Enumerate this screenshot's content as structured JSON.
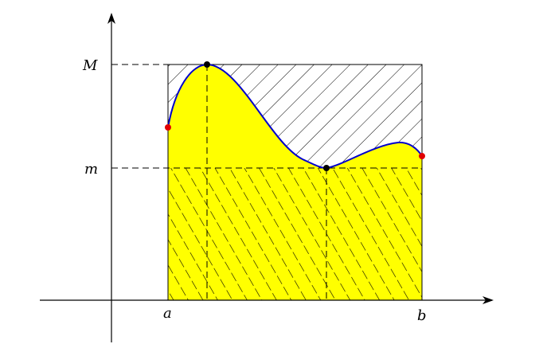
{
  "diagram": {
    "labels": {
      "M": "M",
      "m": "m",
      "a": "a",
      "b": "b"
    },
    "colors": {
      "fill": "#ffff00",
      "curve": "#0000cc",
      "endpoint": "#e00000",
      "extremum": "#000000",
      "hatch": "#000000",
      "axis": "#000000"
    }
  }
}
